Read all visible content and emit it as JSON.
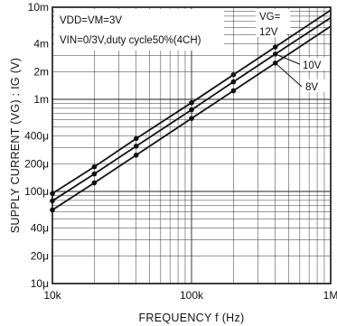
{
  "chart_data": {
    "type": "line",
    "title": "",
    "xlabel": "FREQUENCY f (Hz)",
    "ylabel": "SUPPLY CURRENT (VG) : IG (V)",
    "x_scale": "log",
    "y_scale": "log",
    "xlim": [
      10000,
      1000000
    ],
    "ylim": [
      1e-05,
      0.01
    ],
    "grid": true,
    "x_ticks": [
      {
        "value": 10000,
        "label": "10k"
      },
      {
        "value": 100000,
        "label": "100k"
      },
      {
        "value": 1000000,
        "label": "1M"
      }
    ],
    "y_ticks": [
      {
        "value": 0.01,
        "label": "10m"
      },
      {
        "value": 0.004,
        "label": "4m"
      },
      {
        "value": 0.002,
        "label": "2m"
      },
      {
        "value": 0.001,
        "label": "1m"
      },
      {
        "value": 0.0004,
        "label": "400μ"
      },
      {
        "value": 0.0002,
        "label": "200μ"
      },
      {
        "value": 0.0001,
        "label": "100μ"
      },
      {
        "value": 4e-05,
        "label": "40μ"
      },
      {
        "value": 2e-05,
        "label": "20μ"
      },
      {
        "value": 1e-05,
        "label": "10μ"
      }
    ],
    "annotations": [
      "VDD=VM=3V",
      "VIN=0/3V,duty cycle50%(4CH)"
    ],
    "legend_title": "VG=",
    "series": [
      {
        "name": "12V",
        "x": [
          10000,
          20000,
          40000,
          100000,
          200000,
          400000,
          1000000
        ],
        "y": [
          9.5e-05,
          0.000185,
          0.000375,
          0.00092,
          0.00185,
          0.0037,
          0.0093
        ]
      },
      {
        "name": "10V",
        "x": [
          10000,
          20000,
          40000,
          100000,
          200000,
          400000,
          1000000
        ],
        "y": [
          7.9e-05,
          0.000155,
          0.00031,
          0.00077,
          0.00155,
          0.0031,
          0.0077
        ]
      },
      {
        "name": "8V",
        "x": [
          10000,
          20000,
          40000,
          100000,
          200000,
          400000,
          1000000
        ],
        "y": [
          6.3e-05,
          0.000124,
          0.000248,
          0.00062,
          0.00124,
          0.00248,
          0.0062
        ]
      }
    ]
  }
}
